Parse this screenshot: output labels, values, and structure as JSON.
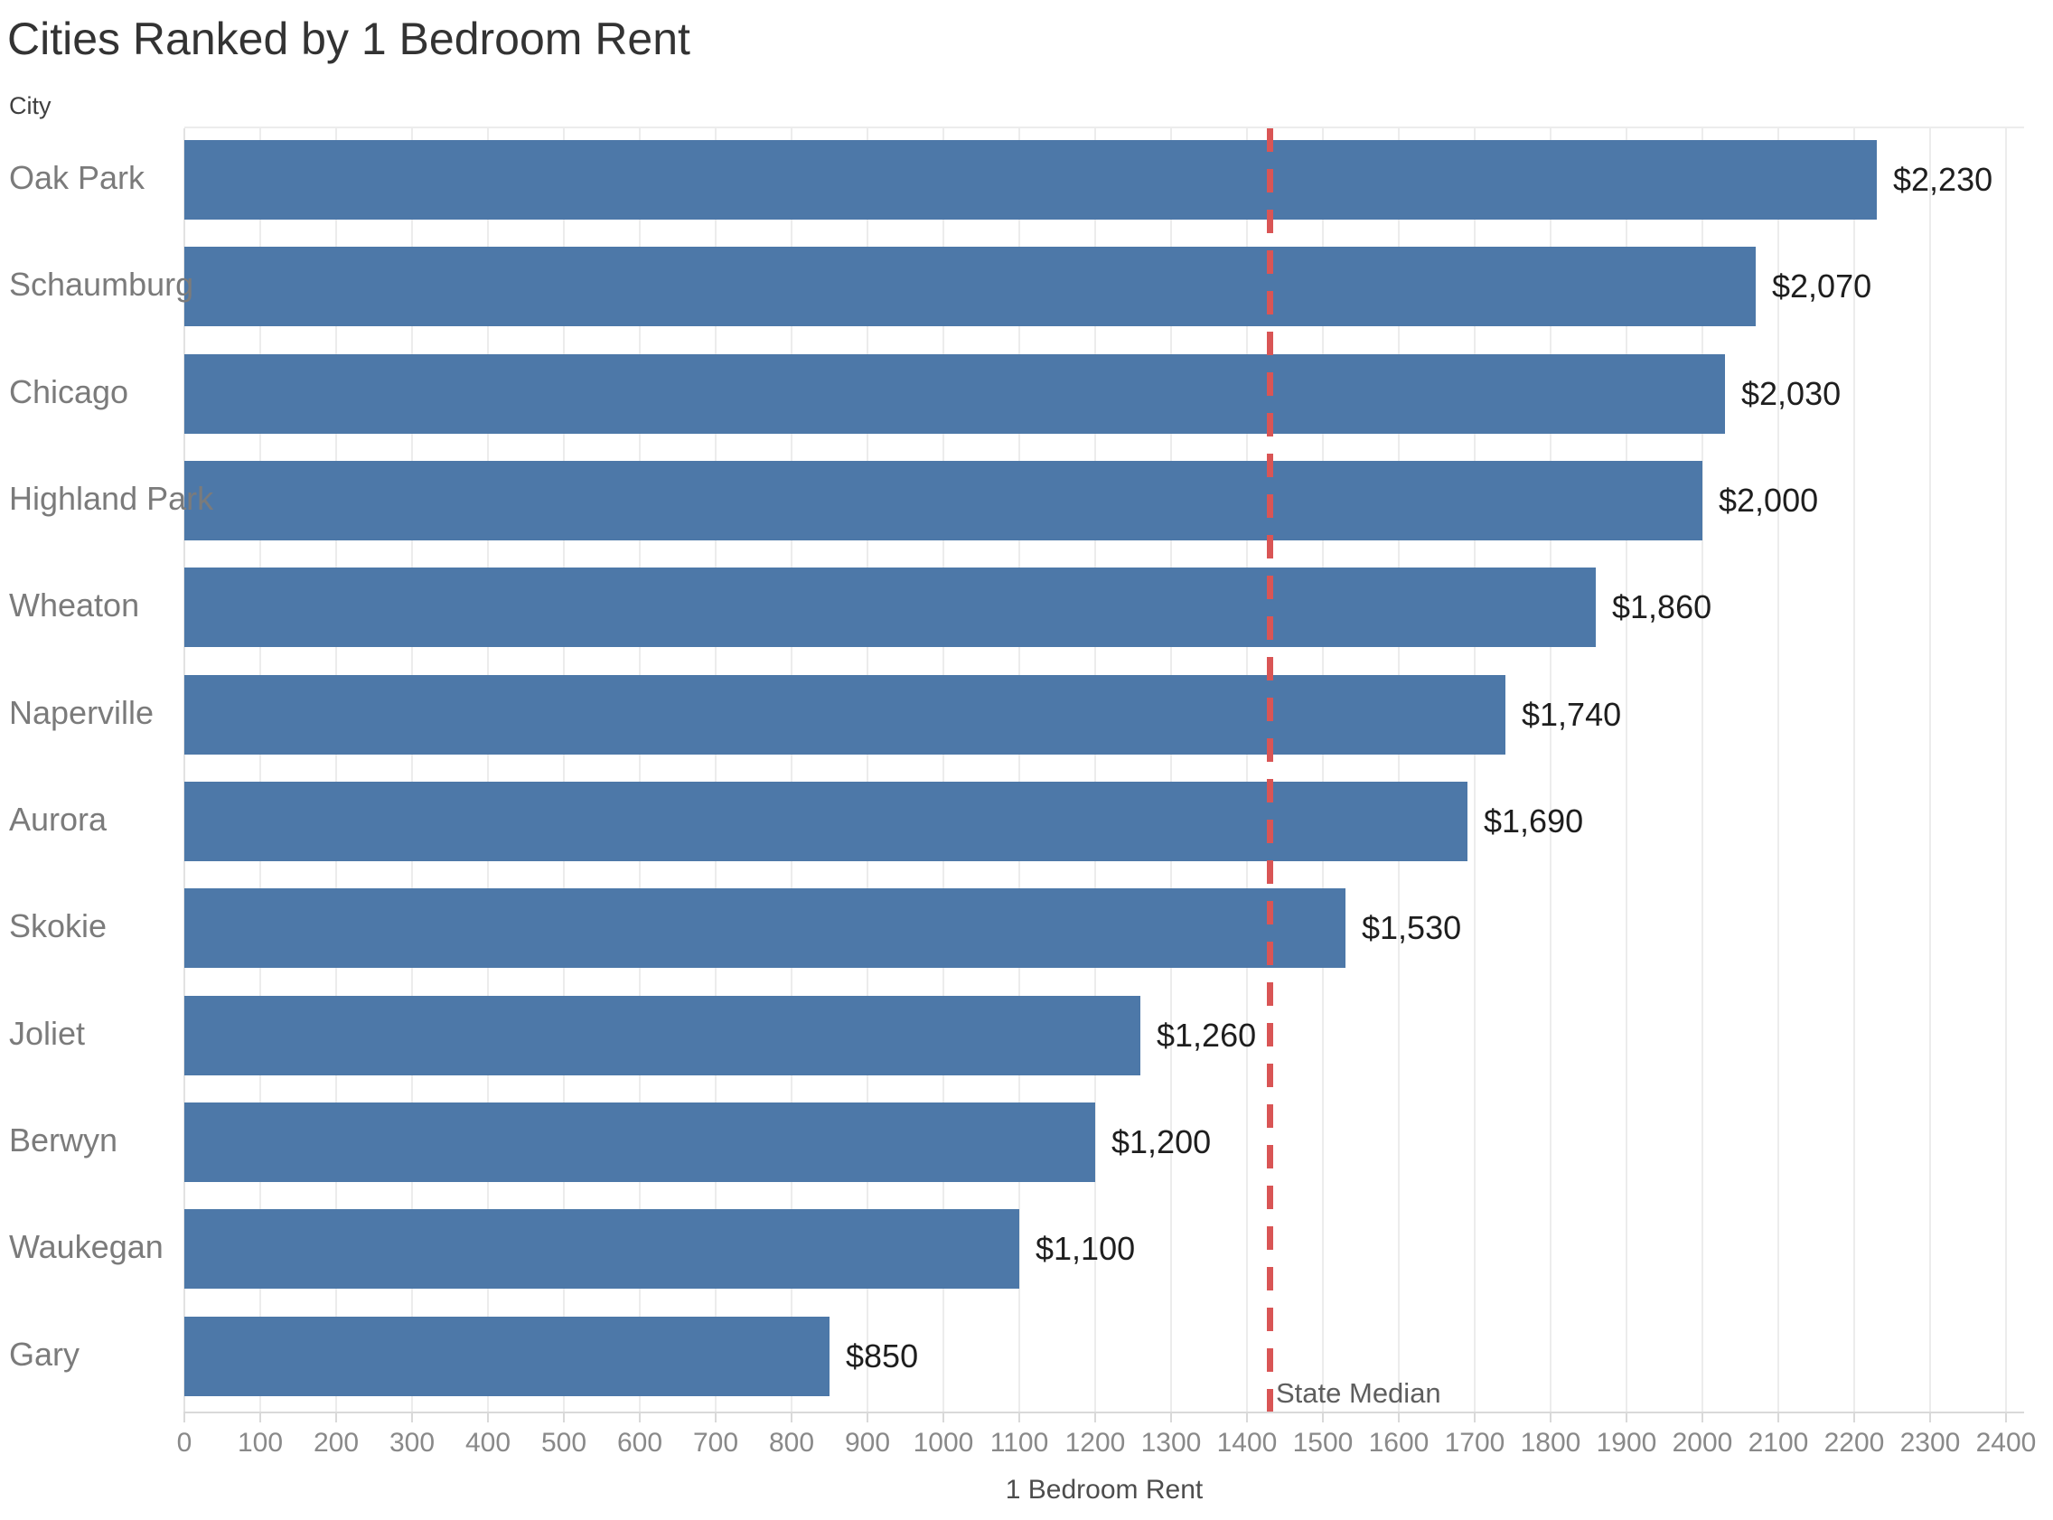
{
  "chart_data": {
    "type": "bar",
    "orientation": "horizontal",
    "title": "Cities Ranked by 1 Bedroom Rent",
    "xlabel": "1 Bedroom Rent",
    "ylabel": "City",
    "xlim": [
      0,
      2400
    ],
    "x_ticks": [
      0,
      100,
      200,
      300,
      400,
      500,
      600,
      700,
      800,
      900,
      1000,
      1100,
      1200,
      1300,
      1400,
      1500,
      1600,
      1700,
      1800,
      1900,
      2000,
      2100,
      2200,
      2300,
      2400
    ],
    "grid": true,
    "legend": "none",
    "bar_color": "#4d78a8",
    "categories": [
      "Oak Park",
      "Schaumburg",
      "Chicago",
      "Highland Park",
      "Wheaton",
      "Naperville",
      "Aurora",
      "Skokie",
      "Joliet",
      "Berwyn",
      "Waukegan",
      "Gary"
    ],
    "values": [
      2230,
      2070,
      2030,
      2000,
      1860,
      1740,
      1690,
      1530,
      1260,
      1200,
      1100,
      850
    ],
    "value_labels": [
      "$2,230",
      "$2,070",
      "$2,030",
      "$2,000",
      "$1,860",
      "$1,740",
      "$1,690",
      "$1,530",
      "$1,260",
      "$1,200",
      "$1,100",
      "$850"
    ],
    "reference_line": {
      "label": "State Median",
      "value": 1430,
      "color": "#d95555"
    }
  }
}
